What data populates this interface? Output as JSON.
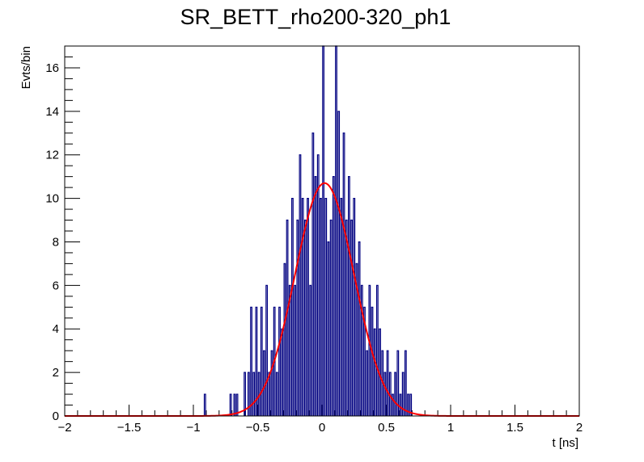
{
  "chart_data": {
    "type": "histogram",
    "title": "SR_BETT_rho200-320_ph1",
    "xlabel": "t [ns]",
    "ylabel": "Evts/bin",
    "xlim": [
      -2,
      2
    ],
    "ylim": [
      0,
      17
    ],
    "x_ticks": [
      "−2",
      "−1.5",
      "−1",
      "−0.5",
      "0",
      "0.5",
      "1",
      "1.5",
      "2"
    ],
    "y_ticks": [
      "0",
      "2",
      "4",
      "6",
      "8",
      "10",
      "12",
      "14",
      "16"
    ],
    "grid": false,
    "colors": {
      "histogram": "#000080",
      "fit": "#ff0000",
      "frame": "#000000"
    },
    "histogram": {
      "bin_width": 0.01,
      "bins": [
        {
          "x": -0.91,
          "y": 1
        },
        {
          "x": -0.71,
          "y": 1
        },
        {
          "x": -0.68,
          "y": 1
        },
        {
          "x": -0.66,
          "y": 1
        },
        {
          "x": -0.6,
          "y": 2
        },
        {
          "x": -0.57,
          "y": 2
        },
        {
          "x": -0.55,
          "y": 5
        },
        {
          "x": -0.53,
          "y": 2
        },
        {
          "x": -0.51,
          "y": 5
        },
        {
          "x": -0.49,
          "y": 2
        },
        {
          "x": -0.47,
          "y": 5
        },
        {
          "x": -0.45,
          "y": 3
        },
        {
          "x": -0.43,
          "y": 6
        },
        {
          "x": -0.41,
          "y": 2
        },
        {
          "x": -0.39,
          "y": 3
        },
        {
          "x": -0.37,
          "y": 5
        },
        {
          "x": -0.35,
          "y": 2
        },
        {
          "x": -0.33,
          "y": 5
        },
        {
          "x": -0.31,
          "y": 4
        },
        {
          "x": -0.29,
          "y": 7
        },
        {
          "x": -0.27,
          "y": 9
        },
        {
          "x": -0.25,
          "y": 6
        },
        {
          "x": -0.23,
          "y": 10
        },
        {
          "x": -0.21,
          "y": 6
        },
        {
          "x": -0.19,
          "y": 9
        },
        {
          "x": -0.17,
          "y": 12
        },
        {
          "x": -0.15,
          "y": 10
        },
        {
          "x": -0.13,
          "y": 9
        },
        {
          "x": -0.11,
          "y": 10
        },
        {
          "x": -0.09,
          "y": 6
        },
        {
          "x": -0.07,
          "y": 13
        },
        {
          "x": -0.05,
          "y": 11
        },
        {
          "x": -0.03,
          "y": 12
        },
        {
          "x": -0.01,
          "y": 10
        },
        {
          "x": 0.01,
          "y": 17
        },
        {
          "x": 0.03,
          "y": 10
        },
        {
          "x": 0.05,
          "y": 8
        },
        {
          "x": 0.07,
          "y": 9
        },
        {
          "x": 0.09,
          "y": 11
        },
        {
          "x": 0.11,
          "y": 17
        },
        {
          "x": 0.13,
          "y": 14
        },
        {
          "x": 0.15,
          "y": 10
        },
        {
          "x": 0.17,
          "y": 13
        },
        {
          "x": 0.19,
          "y": 9
        },
        {
          "x": 0.21,
          "y": 11
        },
        {
          "x": 0.23,
          "y": 9
        },
        {
          "x": 0.25,
          "y": 10
        },
        {
          "x": 0.27,
          "y": 7
        },
        {
          "x": 0.29,
          "y": 8
        },
        {
          "x": 0.31,
          "y": 6
        },
        {
          "x": 0.33,
          "y": 5
        },
        {
          "x": 0.35,
          "y": 3
        },
        {
          "x": 0.37,
          "y": 6
        },
        {
          "x": 0.39,
          "y": 5
        },
        {
          "x": 0.41,
          "y": 4
        },
        {
          "x": 0.43,
          "y": 6
        },
        {
          "x": 0.45,
          "y": 4
        },
        {
          "x": 0.47,
          "y": 3
        },
        {
          "x": 0.49,
          "y": 2
        },
        {
          "x": 0.51,
          "y": 3
        },
        {
          "x": 0.53,
          "y": 2
        },
        {
          "x": 0.55,
          "y": 1
        },
        {
          "x": 0.57,
          "y": 2
        },
        {
          "x": 0.59,
          "y": 3
        },
        {
          "x": 0.61,
          "y": 1
        },
        {
          "x": 0.63,
          "y": 2
        },
        {
          "x": 0.65,
          "y": 3
        },
        {
          "x": 0.67,
          "y": 1
        },
        {
          "x": 0.69,
          "y": 1
        }
      ]
    },
    "fit": {
      "function": "gaussian",
      "amplitude": 10.7,
      "mean": 0.02,
      "sigma": 0.23
    }
  }
}
